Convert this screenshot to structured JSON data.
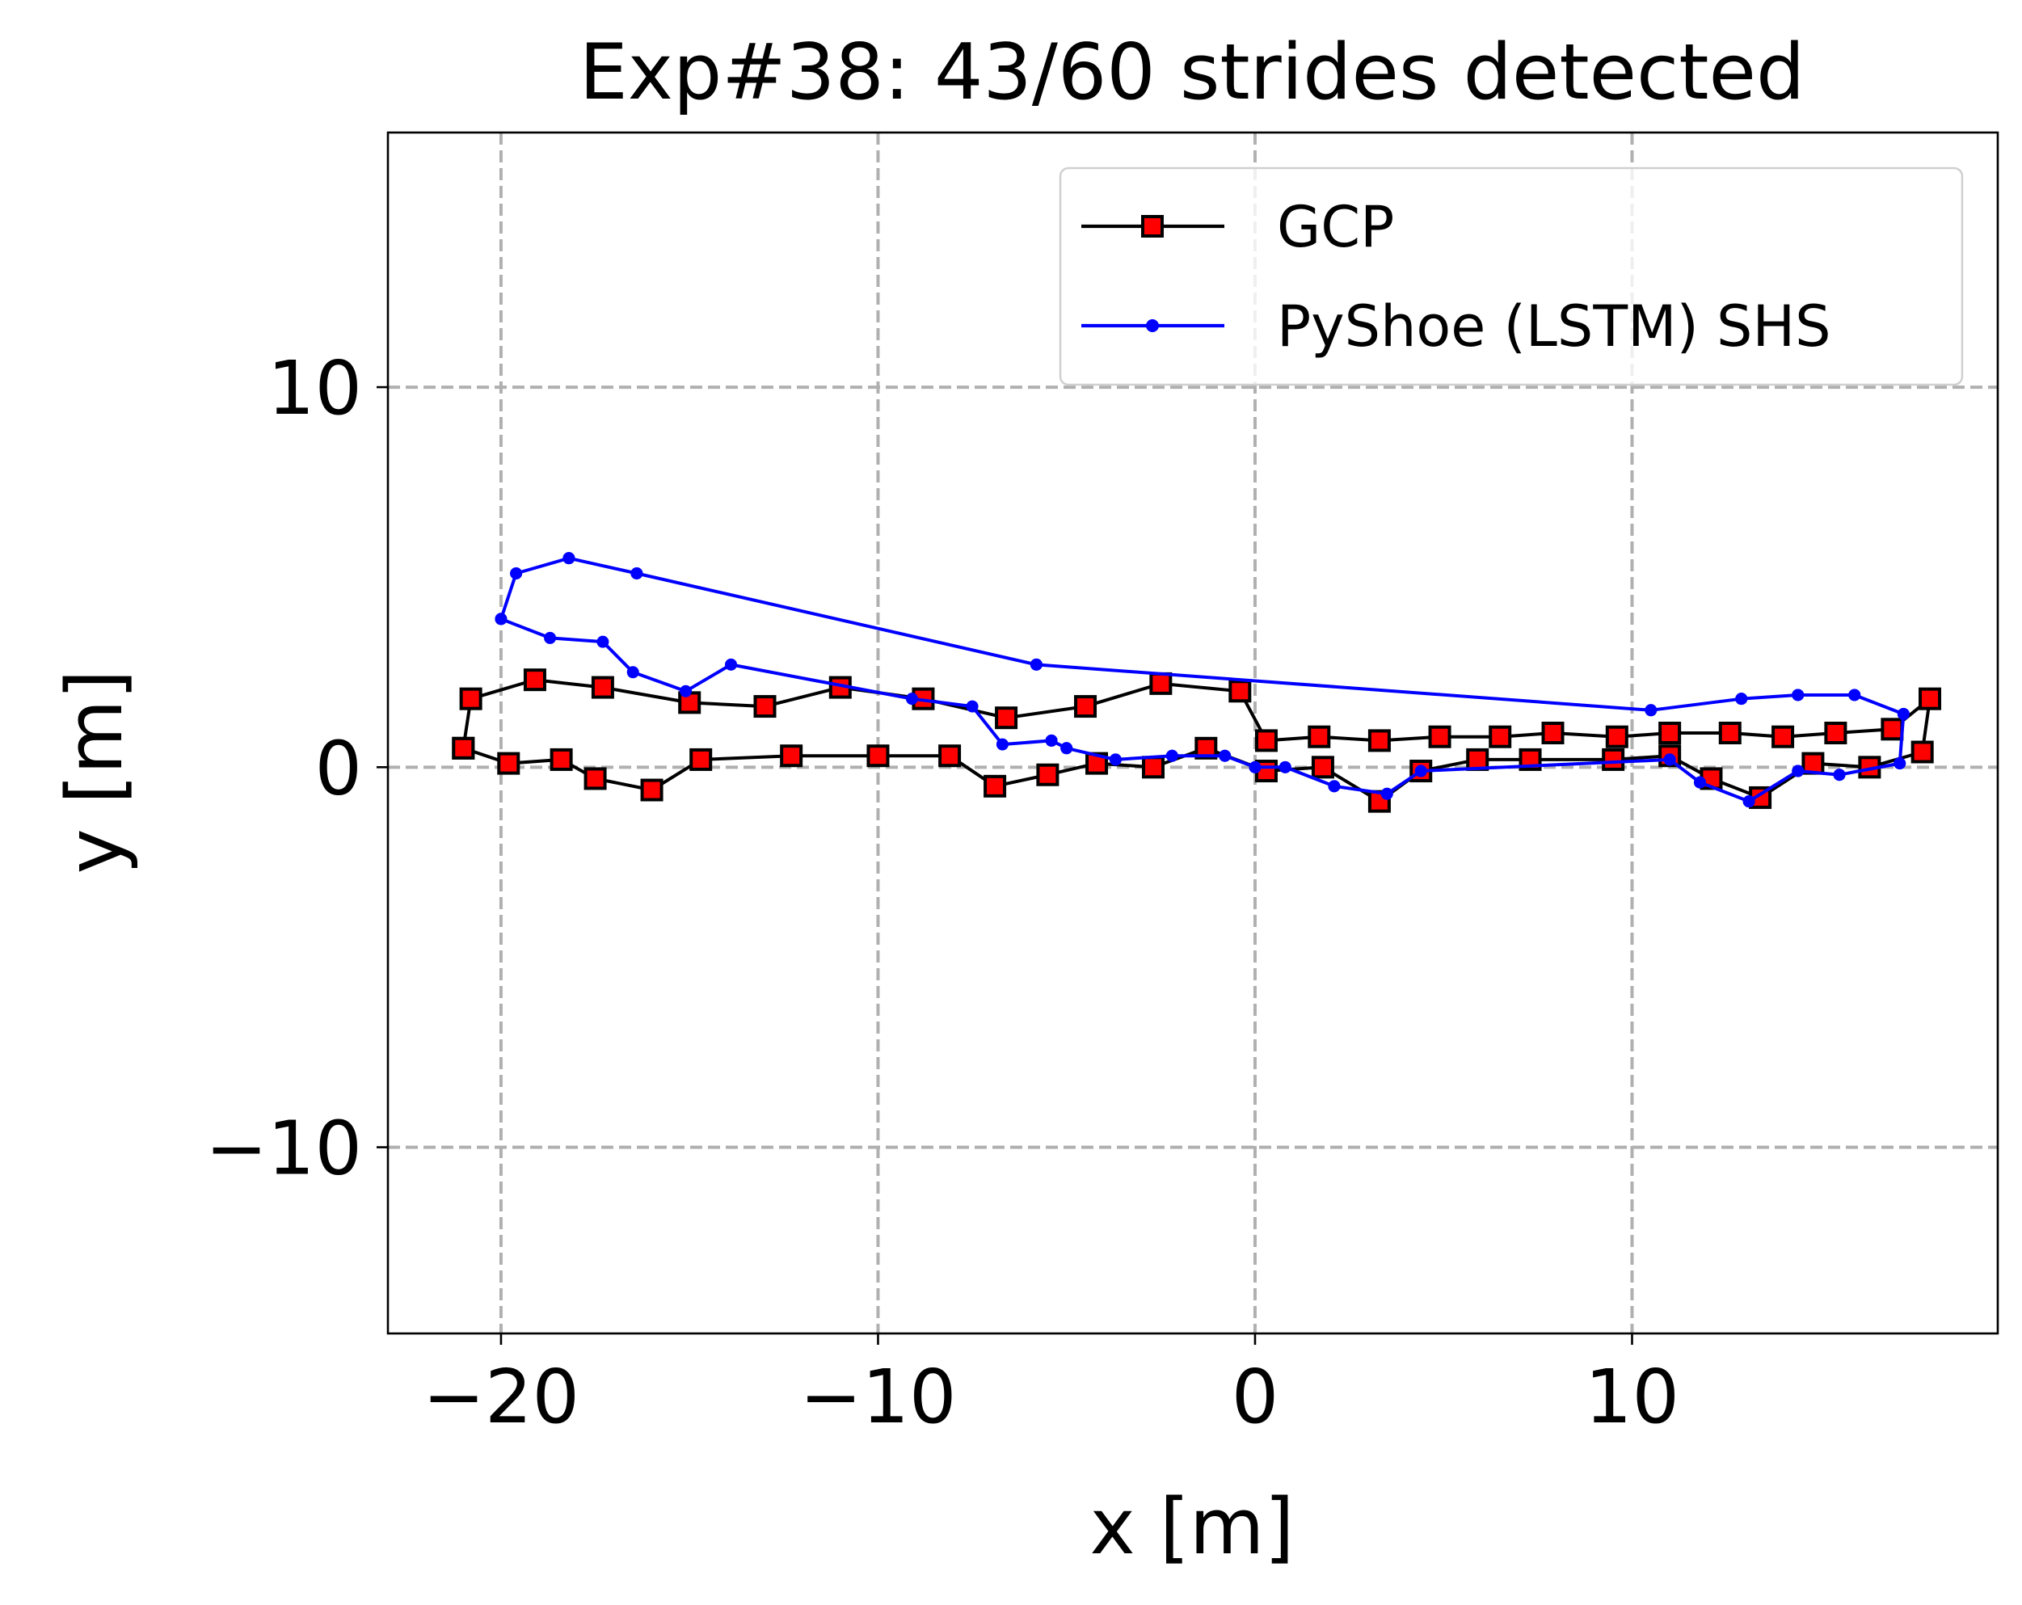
{
  "chart_data": {
    "type": "line",
    "title": "Exp#38: 43/60 strides detected",
    "xlabel": "x [m]",
    "ylabel": "y [m]",
    "xlim": [
      -23,
      19.7
    ],
    "ylim": [
      -14.9,
      16.7
    ],
    "x_ticks": [
      -20,
      -10,
      0,
      10
    ],
    "x_tick_labels": [
      "−20",
      "−10",
      "0",
      "10"
    ],
    "y_ticks": [
      -10,
      0,
      10
    ],
    "y_tick_labels": [
      "−10",
      "0",
      "10"
    ],
    "grid": true,
    "legend_position": "top-right",
    "series": [
      {
        "name": "GCP",
        "color": "#000000",
        "marker": "square",
        "marker_face": "#ff0000",
        "x": [
          -21.0,
          -19.8,
          -18.4,
          -17.5,
          -16.0,
          -14.7,
          -12.3,
          -10.0,
          -8.1,
          -6.9,
          -5.5,
          -4.2,
          -2.7,
          -1.3,
          0.3,
          1.8,
          3.3,
          4.4,
          5.9,
          7.3,
          9.5,
          11.0,
          12.1,
          13.4,
          14.8,
          16.3,
          17.7,
          17.9,
          16.9,
          15.4,
          14.0,
          12.6,
          11.0,
          9.6,
          7.9,
          6.5,
          4.9,
          3.3,
          1.7,
          0.3,
          -0.4,
          -2.5,
          -4.5,
          -6.6,
          -8.8,
          -11.0,
          -13.0,
          -15.0,
          -17.3,
          -19.1,
          -20.8,
          -21.0
        ],
        "y": [
          0.5,
          0.1,
          0.2,
          -0.3,
          -0.6,
          0.2,
          0.3,
          0.3,
          0.3,
          -0.5,
          -0.2,
          0.1,
          0.0,
          0.5,
          -0.1,
          0.0,
          -0.9,
          -0.1,
          0.2,
          0.2,
          0.2,
          0.3,
          -0.3,
          -0.8,
          0.1,
          0.0,
          0.4,
          1.8,
          1.0,
          0.9,
          0.8,
          0.9,
          0.9,
          0.8,
          0.9,
          0.8,
          0.8,
          0.7,
          0.8,
          0.7,
          2.0,
          2.2,
          1.6,
          1.3,
          1.8,
          2.1,
          1.6,
          1.7,
          2.1,
          2.3,
          1.8,
          0.5
        ]
      },
      {
        "name": "PyShoe (LSTM) SHS",
        "color": "#0000ff",
        "marker": "dot",
        "x": [
          -20.0,
          -19.6,
          -18.2,
          -16.4,
          -5.8,
          10.5,
          12.9,
          14.4,
          15.9,
          17.2,
          17.1,
          15.5,
          14.4,
          13.1,
          11.8,
          11.0,
          4.4,
          3.5,
          2.1,
          0.8,
          0.0,
          -0.8,
          -2.2,
          -3.7,
          -5.0,
          -5.4,
          -6.7,
          -7.5,
          -9.1,
          -13.9,
          -15.1,
          -16.5,
          -17.3,
          -18.7,
          -20.0,
          -19.6,
          -18.2,
          -16.4,
          -5.8,
          10.5,
          12.9,
          14.4,
          15.9,
          17.2,
          17.1,
          15.5,
          14.4,
          13.1,
          11.8,
          11.0,
          4.4,
          3.5,
          2.1,
          0.8,
          0.0,
          -0.8,
          -2.2,
          -3.7,
          -5.0,
          -5.4
        ],
        "y": [
          3.9,
          5.1,
          5.5,
          5.1,
          2.7,
          1.5,
          1.8,
          1.9,
          1.9,
          1.4,
          0.1,
          -0.2,
          -0.1,
          -0.9,
          -0.4,
          0.2,
          -0.1,
          -0.7,
          -0.5,
          0.0,
          0.0,
          0.3,
          0.3,
          0.2,
          0.5,
          0.7,
          0.6,
          1.6,
          1.8,
          2.7,
          2.0,
          2.5,
          3.3,
          3.4,
          3.9,
          5.1,
          5.5,
          5.1,
          2.7,
          1.5,
          1.8,
          1.9,
          1.9,
          1.4,
          0.1,
          -0.2,
          -0.1,
          -0.9,
          -0.4,
          0.2,
          -0.1,
          -0.7,
          -0.5,
          0.0,
          0.0,
          0.3,
          0.3,
          0.2,
          0.5,
          0.7
        ]
      }
    ]
  }
}
